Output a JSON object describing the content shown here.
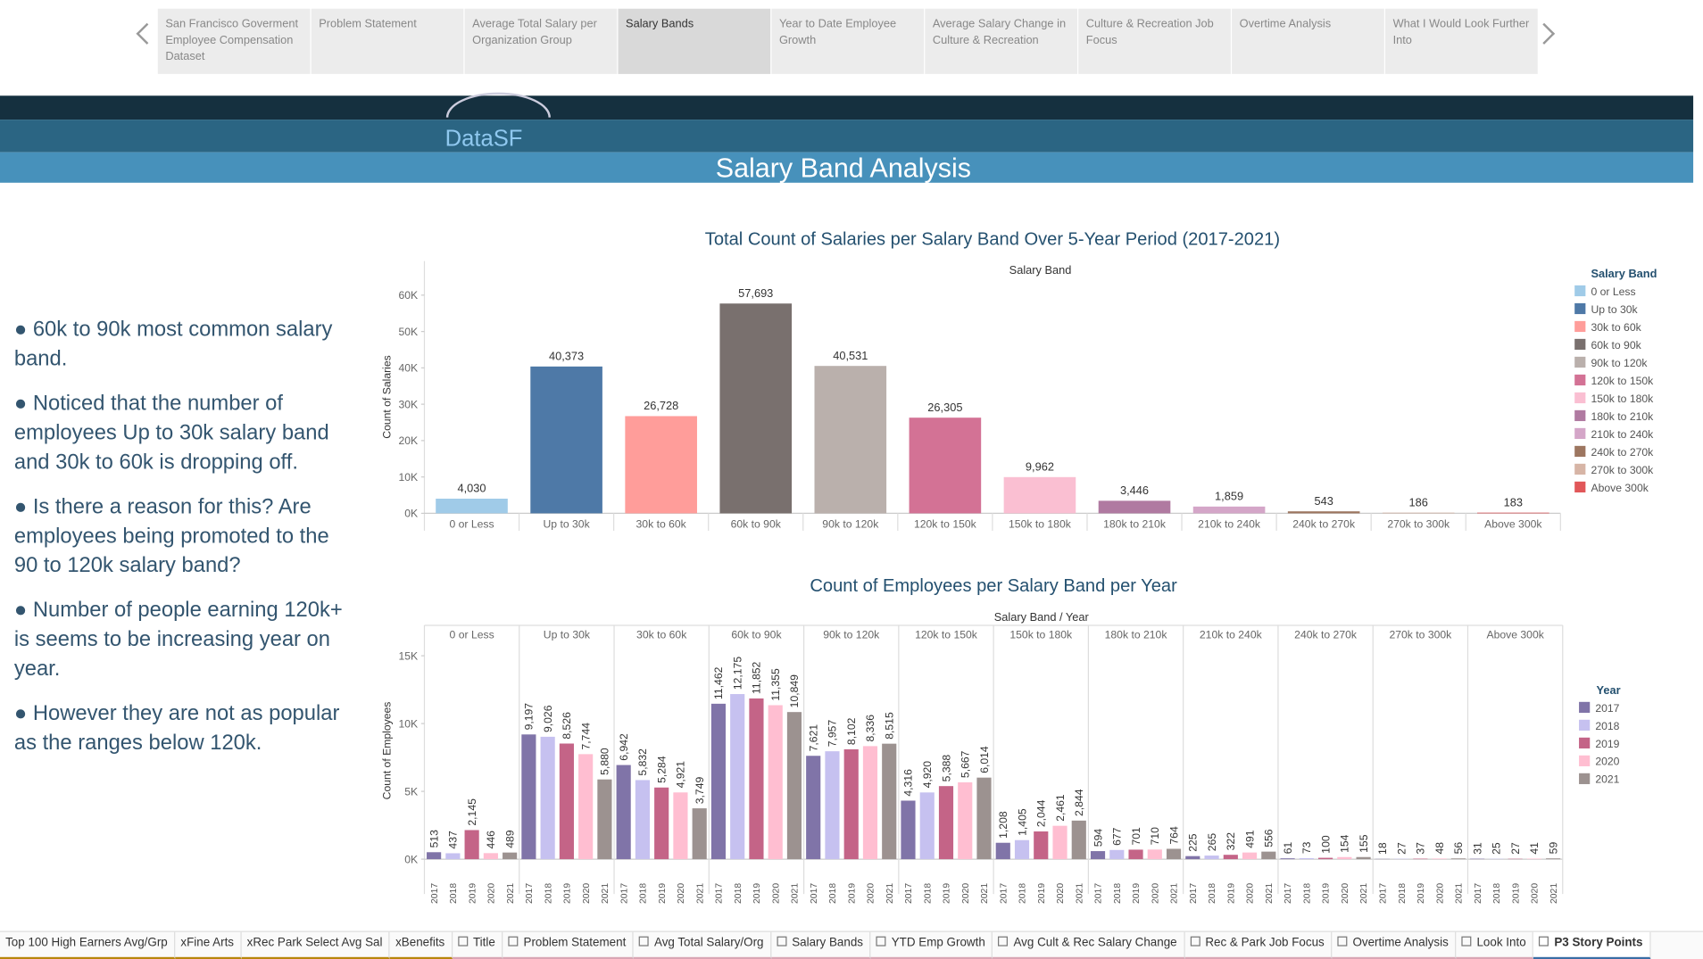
{
  "nav": {
    "items": [
      "San Francisco Goverment Employee Compensation Dataset",
      "Problem Statement",
      "Average Total Salary per Organization Group",
      "Salary Bands",
      "Year to Date Employee Growth",
      "Average Salary Change in Culture & Recreation",
      "Culture & Recreation Job Focus",
      "Overtime Analysis",
      "What I Would Look Further Into"
    ],
    "active": 3
  },
  "header": {
    "logo": "DataSF",
    "title": "Salary Band Analysis"
  },
  "notes": [
    "● 60k to 90k most common salary band.",
    "● Noticed that the number of employees Up to 30k salary band and 30k to 60k is dropping off.",
    "● Is there a reason for this? Are employees being promoted to the 90 to 120k salary band?",
    "● Number of people earning 120k+ is seems to be increasing year on year.",
    "● However they are not as popular as the ranges below 120k."
  ],
  "chart_data": [
    {
      "type": "bar",
      "title": "Total Count of Salaries per Salary Band Over 5-Year Period (2017-2021)",
      "header": "Salary Band",
      "y_label": "Count of Salaries",
      "legend_title": "Salary Band",
      "categories": [
        "0 or Less",
        "Up to 30k",
        "30k to 60k",
        "60k to 90k",
        "90k to 120k",
        "120k to 150k",
        "150k to 180k",
        "180k to 210k",
        "210k to 240k",
        "240k to 270k",
        "270k to 300k",
        "Above 300k"
      ],
      "values": [
        4030,
        40373,
        26728,
        57693,
        40531,
        26305,
        9962,
        3446,
        1859,
        543,
        186,
        183
      ],
      "value_labels": [
        "4,030",
        "40,373",
        "26,728",
        "57,693",
        "40,531",
        "26,305",
        "9,962",
        "3,446",
        "1,859",
        "543",
        "186",
        "183"
      ],
      "colors": [
        "#a0cbe8",
        "#4e79a7",
        "#ff9d9a",
        "#79706e",
        "#bab0ac",
        "#d37295",
        "#fabfd2",
        "#b07aa1",
        "#d4a6c8",
        "#9d7660",
        "#d7b5a6",
        "#e15759"
      ],
      "ylim": [
        0,
        64000
      ],
      "yticks": [
        {
          "value": 0,
          "label": "0K"
        },
        {
          "value": 10000,
          "label": "10K"
        },
        {
          "value": 20000,
          "label": "20K"
        },
        {
          "value": 30000,
          "label": "30K"
        },
        {
          "value": 40000,
          "label": "40K"
        },
        {
          "value": 50000,
          "label": "50K"
        },
        {
          "value": 60000,
          "label": "60K"
        }
      ]
    },
    {
      "type": "bar",
      "title": "Count of Employees per Salary Band per Year",
      "header": "Salary Band / Year",
      "y_label": "Count of Employees",
      "legend_title": "Year",
      "categories": [
        "0 or Less",
        "Up to 30k",
        "30k to 60k",
        "60k to 90k",
        "90k to 120k",
        "120k to 150k",
        "150k to 180k",
        "180k to 210k",
        "210k to 240k",
        "240k to 270k",
        "270k to 300k",
        "Above 300k"
      ],
      "series": [
        {
          "name": "2017",
          "color": "#8074a8",
          "values": [
            513,
            9197,
            6942,
            11462,
            7621,
            4316,
            1208,
            594,
            225,
            61,
            18,
            31
          ],
          "value_labels": [
            "513",
            "9,197",
            "6,942",
            "11,462",
            "7,621",
            "4,316",
            "1,208",
            "594",
            "225",
            "61",
            "18",
            "31"
          ]
        },
        {
          "name": "2018",
          "color": "#c6c1f0",
          "values": [
            437,
            9026,
            5832,
            12175,
            7957,
            4920,
            1405,
            677,
            265,
            73,
            27,
            25
          ],
          "value_labels": [
            "437",
            "9,026",
            "5,832",
            "12,175",
            "7,957",
            "4,920",
            "1,405",
            "677",
            "265",
            "73",
            "27",
            "25"
          ]
        },
        {
          "name": "2019",
          "color": "#c46487",
          "values": [
            2145,
            8526,
            5284,
            11852,
            8102,
            5388,
            2044,
            701,
            322,
            100,
            37,
            27
          ],
          "value_labels": [
            "2,145",
            "8,526",
            "5,284",
            "11,852",
            "8,102",
            "5,388",
            "2,044",
            "701",
            "322",
            "100",
            "37",
            "27"
          ]
        },
        {
          "name": "2020",
          "color": "#ffbed1",
          "values": [
            446,
            7744,
            4921,
            11355,
            8336,
            5667,
            2461,
            710,
            491,
            154,
            48,
            41
          ],
          "value_labels": [
            "446",
            "7,744",
            "4,921",
            "11,355",
            "8,336",
            "5,667",
            "2,461",
            "710",
            "491",
            "154",
            "48",
            "41"
          ]
        },
        {
          "name": "2021",
          "color": "#9c9290",
          "values": [
            489,
            5880,
            3749,
            10849,
            8515,
            6014,
            2844,
            764,
            556,
            155,
            56,
            59
          ],
          "value_labels": [
            "489",
            "5,880",
            "3,749",
            "10,849",
            "8,515",
            "6,014",
            "2,844",
            "764",
            "556",
            "155",
            "56",
            "59"
          ]
        }
      ],
      "ylim": [
        0,
        16000
      ],
      "yticks": [
        {
          "value": 0,
          "label": "0K"
        },
        {
          "value": 5000,
          "label": "5K"
        },
        {
          "value": 10000,
          "label": "10K"
        },
        {
          "value": 15000,
          "label": "15K"
        }
      ]
    }
  ],
  "tabs": {
    "items": [
      "Top 100 High Earners Avg/Grp",
      "xFine Arts",
      "xRec Park Select Avg Sal",
      "xBenefits",
      "Title",
      "Problem Statement",
      "Avg Total Salary/Org",
      "Salary Bands",
      "YTD Emp Growth",
      "Avg Cult & Rec Salary Change",
      "Rec & Park Job Focus",
      "Overtime Analysis",
      "Look Into",
      "P3 Story Points"
    ],
    "active": 13
  }
}
